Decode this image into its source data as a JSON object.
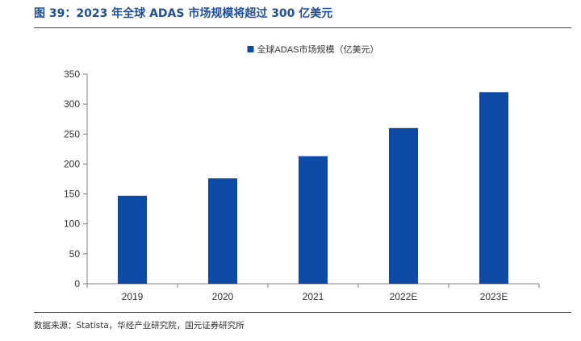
{
  "figure": {
    "title": "图 39：2023 年全球 ADAS 市场规模将超过 300 亿美元",
    "source": "数据来源：Statista，华经产业研究院，国元证券研究所"
  },
  "colors": {
    "title": "#1f4e9a",
    "bar": "#0d4aa6",
    "axis": "#808080",
    "text": "#333333"
  },
  "chart_data": {
    "type": "bar",
    "categories": [
      "2019",
      "2020",
      "2021",
      "2022E",
      "2023E"
    ],
    "series": [
      {
        "name": "全球ADAS市场规模（亿美元）",
        "values": [
          147,
          176,
          213,
          260,
          320
        ]
      }
    ],
    "ylim": [
      0,
      350
    ],
    "yticks": [
      0,
      50,
      100,
      150,
      200,
      250,
      300,
      350
    ],
    "grid": false,
    "legend": "top-center"
  }
}
